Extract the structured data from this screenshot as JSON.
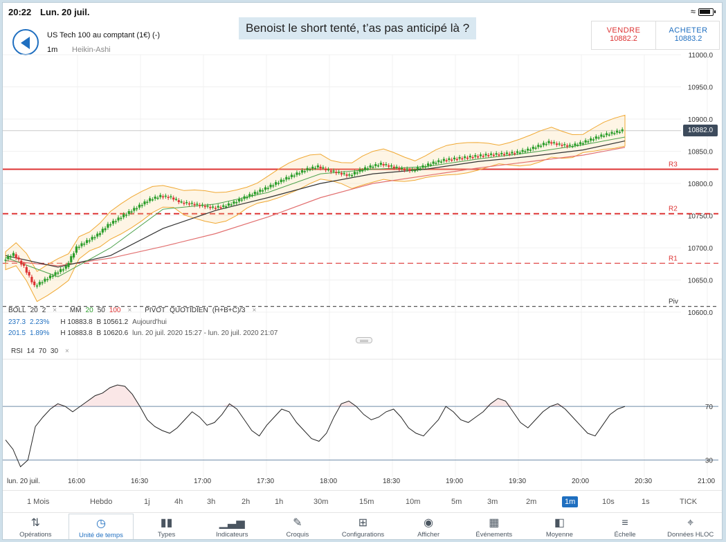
{
  "status_bar": {
    "time": "20:22",
    "date": "Lun. 20 juil."
  },
  "caption": "Benoist le short tenté, t’as pas anticipé là ?",
  "instrument": {
    "name": "US Tech 100 au comptant (1€) (-)",
    "timeframe": "1m",
    "chart_type": "Heikin-Ashi"
  },
  "quote": {
    "sell_label": "VENDRE",
    "sell_value": "10882.2",
    "buy_label": "ACHETER",
    "buy_value": "10883.2"
  },
  "colors": {
    "up": "#2a9d2a",
    "down": "#d33",
    "accent": "#1f6fc0",
    "r_level": "#d33",
    "pivot": "#555",
    "boll": "#f0a832"
  },
  "legend": {
    "boll": "BOLL",
    "boll_period": "20",
    "boll_dev": "2",
    "mm": "MM",
    "mm_1": "20",
    "mm_2": "50",
    "mm_3": "100",
    "pivot": "PIVOT",
    "pivot_type": "QUOTIDIEN",
    "pivot_formula": "(H+B+C)/3",
    "close_symbol": "×",
    "row2_left": "237.3",
    "row2_pct": "2.23%",
    "row2_h": "H 10883.8",
    "row2_b": "B 10561.2",
    "row2_period": "Aujourd'hui",
    "row3_left": "201.5",
    "row3_pct": "1.89%",
    "row3_h": "H 10883.8",
    "row3_b": "B 10620.6",
    "row3_period": "lun. 20 juil. 2020 15:27 - lun. 20 juil. 2020 21:07"
  },
  "rsi_legend": {
    "label": "RSI",
    "p1": "14",
    "p2": "70",
    "p3": "30",
    "close_symbol": "×"
  },
  "current_price_badge": "10882.0",
  "chart_data": {
    "type": "line",
    "title": "",
    "price_axis": {
      "ticks": [
        "11000.0",
        "10950.0",
        "10900.0",
        "10850.0",
        "10800.0",
        "10750.0",
        "10700.0",
        "10650.0",
        "10600.0"
      ],
      "ylim": [
        10600,
        11000
      ]
    },
    "levels": [
      {
        "name": "R3",
        "value": 10822
      },
      {
        "name": "R2",
        "value": 10753
      },
      {
        "name": "R1",
        "value": 10676
      },
      {
        "name": "Piv",
        "value": 10609
      }
    ],
    "time_axis": [
      "lun. 20 juil.",
      "16:00",
      "16:30",
      "17:00",
      "17:30",
      "18:00",
      "18:30",
      "19:00",
      "19:30",
      "20:00",
      "20:30",
      "21:00"
    ],
    "price_series": [
      [
        0,
        10680
      ],
      [
        4,
        10690
      ],
      [
        8,
        10670
      ],
      [
        12,
        10640
      ],
      [
        16,
        10650
      ],
      [
        20,
        10660
      ],
      [
        24,
        10670
      ],
      [
        28,
        10700
      ],
      [
        32,
        10710
      ],
      [
        36,
        10720
      ],
      [
        40,
        10735
      ],
      [
        44,
        10745
      ],
      [
        48,
        10755
      ],
      [
        52,
        10765
      ],
      [
        56,
        10775
      ],
      [
        60,
        10780
      ],
      [
        64,
        10778
      ],
      [
        68,
        10770
      ],
      [
        72,
        10768
      ],
      [
        76,
        10765
      ],
      [
        80,
        10762
      ],
      [
        84,
        10764
      ],
      [
        88,
        10770
      ],
      [
        92,
        10778
      ],
      [
        96,
        10785
      ],
      [
        100,
        10792
      ],
      [
        104,
        10800
      ],
      [
        108,
        10808
      ],
      [
        112,
        10815
      ],
      [
        116,
        10822
      ],
      [
        120,
        10826
      ],
      [
        124,
        10820
      ],
      [
        128,
        10816
      ],
      [
        132,
        10812
      ],
      [
        136,
        10820
      ],
      [
        140,
        10826
      ],
      [
        144,
        10830
      ],
      [
        148,
        10826
      ],
      [
        152,
        10822
      ],
      [
        156,
        10820
      ],
      [
        160,
        10826
      ],
      [
        164,
        10832
      ],
      [
        168,
        10836
      ],
      [
        172,
        10838
      ],
      [
        176,
        10840
      ],
      [
        180,
        10842
      ],
      [
        184,
        10844
      ],
      [
        188,
        10845
      ],
      [
        192,
        10846
      ],
      [
        196,
        10848
      ],
      [
        200,
        10852
      ],
      [
        204,
        10858
      ],
      [
        208,
        10864
      ],
      [
        212,
        10860
      ],
      [
        216,
        10858
      ],
      [
        220,
        10862
      ],
      [
        224,
        10868
      ],
      [
        228,
        10874
      ],
      [
        232,
        10878
      ],
      [
        236,
        10882
      ]
    ],
    "ma20": [
      [
        0,
        10685
      ],
      [
        20,
        10655
      ],
      [
        40,
        10700
      ],
      [
        60,
        10760
      ],
      [
        80,
        10768
      ],
      [
        100,
        10786
      ],
      [
        120,
        10815
      ],
      [
        140,
        10822
      ],
      [
        160,
        10826
      ],
      [
        180,
        10838
      ],
      [
        200,
        10848
      ],
      [
        220,
        10860
      ],
      [
        236,
        10872
      ]
    ],
    "ma50": [
      [
        0,
        10688
      ],
      [
        20,
        10670
      ],
      [
        40,
        10688
      ],
      [
        60,
        10730
      ],
      [
        80,
        10758
      ],
      [
        100,
        10778
      ],
      [
        120,
        10800
      ],
      [
        140,
        10815
      ],
      [
        160,
        10822
      ],
      [
        180,
        10834
      ],
      [
        200,
        10842
      ],
      [
        220,
        10852
      ],
      [
        236,
        10866
      ]
    ],
    "ma100": [
      [
        0,
        10680
      ],
      [
        20,
        10672
      ],
      [
        40,
        10684
      ],
      [
        60,
        10702
      ],
      [
        80,
        10722
      ],
      [
        100,
        10748
      ],
      [
        120,
        10778
      ],
      [
        140,
        10800
      ],
      [
        160,
        10812
      ],
      [
        180,
        10824
      ],
      [
        200,
        10834
      ],
      [
        220,
        10844
      ],
      [
        236,
        10856
      ]
    ],
    "rsi": {
      "levels": [
        "70",
        "30"
      ],
      "ylim": [
        20,
        100
      ],
      "values": [
        45,
        38,
        25,
        30,
        55,
        62,
        68,
        72,
        70,
        66,
        70,
        74,
        78,
        80,
        84,
        86,
        85,
        79,
        70,
        60,
        55,
        52,
        50,
        54,
        60,
        66,
        62,
        56,
        58,
        64,
        72,
        68,
        60,
        52,
        48,
        56,
        62,
        68,
        66,
        58,
        52,
        46,
        44,
        50,
        62,
        72,
        74,
        70,
        64,
        60,
        62,
        66,
        68,
        62,
        54,
        50,
        48,
        54,
        60,
        70,
        66,
        60,
        58,
        62,
        66,
        72,
        76,
        74,
        66,
        58,
        54,
        60,
        66,
        70,
        72,
        68,
        62,
        56,
        50,
        48,
        56,
        64,
        68,
        70
      ]
    }
  },
  "timeframes": [
    "1 Mois",
    "Hebdo",
    "1j",
    "4h",
    "3h",
    "2h",
    "1h",
    "30m",
    "15m",
    "10m",
    "5m",
    "3m",
    "2m",
    "1m",
    "10s",
    "1s",
    "TICK"
  ],
  "active_timeframe": "1m",
  "toolbar": [
    {
      "label": "Opérations",
      "icon": "swap-icon"
    },
    {
      "label": "Unité de temps",
      "icon": "clock-icon"
    },
    {
      "label": "Types",
      "icon": "candles-icon"
    },
    {
      "label": "Indicateurs",
      "icon": "bars-icon"
    },
    {
      "label": "Croquis",
      "icon": "pencil-icon"
    },
    {
      "label": "Configurations",
      "icon": "layout-icon"
    },
    {
      "label": "Afficher",
      "icon": "eye-icon"
    },
    {
      "label": "Événements",
      "icon": "calendar-icon"
    },
    {
      "label": "Moyenne",
      "icon": "average-icon"
    },
    {
      "label": "Échelle",
      "icon": "scale-icon"
    },
    {
      "label": "Données HLOC",
      "icon": "crosshair-icon"
    }
  ],
  "active_tool": "Unité de temps"
}
